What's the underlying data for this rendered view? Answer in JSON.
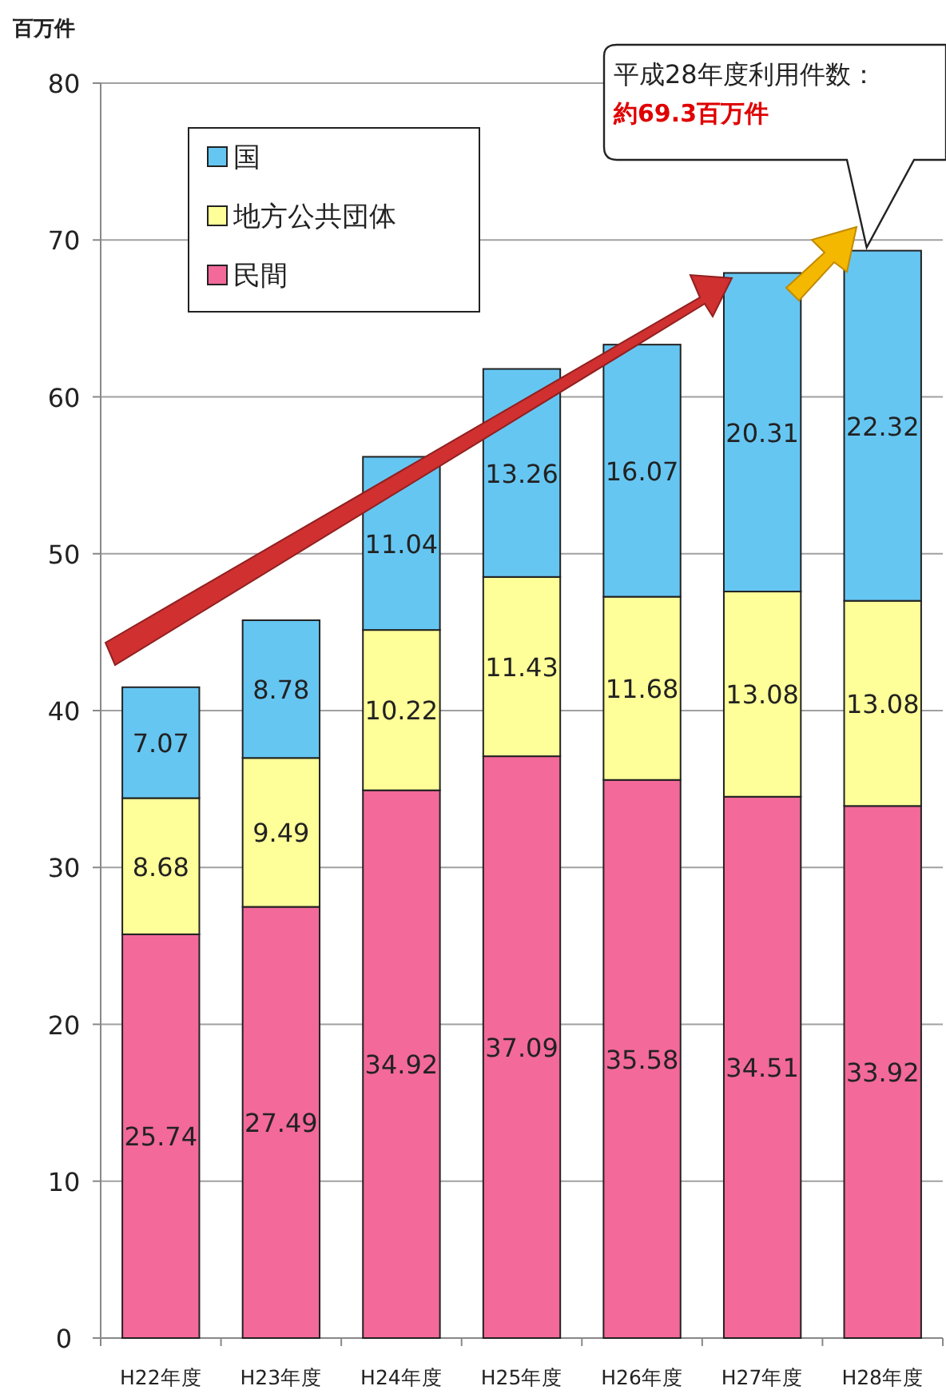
{
  "chart_data": {
    "type": "bar",
    "stacked": true,
    "ylabel": "百万件",
    "categories": [
      "H22年度",
      "H23年度",
      "H24年度",
      "H25年度",
      "H26年度",
      "H27年度",
      "H28年度"
    ],
    "series": [
      {
        "name": "民間",
        "color": "#f2699a",
        "values": [
          25.74,
          27.49,
          34.92,
          37.09,
          35.58,
          34.51,
          33.92
        ]
      },
      {
        "name": "地方公共団体",
        "color": "#ffff99",
        "values": [
          8.68,
          9.49,
          10.22,
          11.43,
          11.68,
          13.08,
          13.08
        ]
      },
      {
        "name": "国",
        "color": "#66c6f2",
        "values": [
          7.07,
          8.78,
          11.04,
          13.26,
          16.07,
          20.31,
          22.32
        ]
      }
    ],
    "ylim": [
      0,
      80
    ],
    "yticks": [
      0,
      10,
      20,
      30,
      40,
      50,
      60,
      70,
      80
    ],
    "grid": "y",
    "legend": "top left",
    "data_labels": true,
    "annotations": [
      "平成28年度利用件数：**約69.3百万件**"
    ]
  }
}
